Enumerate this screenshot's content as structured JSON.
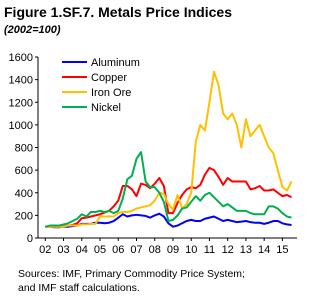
{
  "chart_data": {
    "type": "line",
    "title": "Figure 1.SF.7. Metals Price Indices",
    "subtitle": "(2002=100)",
    "source": [
      "Sources: IMF, Primary Commodity Price System;",
      "and IMF staff calculations."
    ],
    "legend": "top-left",
    "grid": false,
    "xlim": [
      2001.6,
      2015.8
    ],
    "ylim": [
      0,
      1600
    ],
    "yticks": [
      0,
      200,
      400,
      600,
      800,
      1000,
      1200,
      1400,
      1600
    ],
    "xticks": [
      {
        "value": 2002,
        "label": "02"
      },
      {
        "value": 2003,
        "label": "03"
      },
      {
        "value": 2004,
        "label": "04"
      },
      {
        "value": 2005,
        "label": "05"
      },
      {
        "value": 2006,
        "label": "06"
      },
      {
        "value": 2007,
        "label": "07"
      },
      {
        "value": 2008,
        "label": "08"
      },
      {
        "value": 2009,
        "label": "09"
      },
      {
        "value": 2010,
        "label": "10"
      },
      {
        "value": 2011,
        "label": "11"
      },
      {
        "value": 2012,
        "label": "12"
      },
      {
        "value": 2013,
        "label": "13"
      },
      {
        "value": 2014,
        "label": "14"
      },
      {
        "value": 2015,
        "label": "15"
      }
    ],
    "x": [
      2002,
      2002.25,
      2002.5,
      2002.75,
      2003,
      2003.25,
      2003.5,
      2003.75,
      2004,
      2004.25,
      2004.5,
      2004.75,
      2005,
      2005.25,
      2005.5,
      2005.75,
      2006,
      2006.25,
      2006.5,
      2006.75,
      2007,
      2007.25,
      2007.5,
      2007.75,
      2008,
      2008.25,
      2008.5,
      2008.75,
      2009,
      2009.25,
      2009.5,
      2009.75,
      2010,
      2010.25,
      2010.5,
      2010.75,
      2011,
      2011.25,
      2011.5,
      2011.75,
      2012,
      2012.25,
      2012.5,
      2012.75,
      2013,
      2013.25,
      2013.5,
      2013.75,
      2014,
      2014.25,
      2014.5,
      2014.75,
      2015,
      2015.25,
      2015.5
    ],
    "series": [
      {
        "name": "Aluminum",
        "color": "#0000ff",
        "values": [
          100,
          100,
          95,
          95,
          100,
          100,
          105,
          110,
          125,
          125,
          125,
          135,
          135,
          130,
          135,
          150,
          180,
          210,
          190,
          200,
          205,
          200,
          195,
          180,
          200,
          215,
          190,
          130,
          100,
          110,
          130,
          150,
          160,
          150,
          150,
          170,
          180,
          190,
          170,
          150,
          160,
          150,
          140,
          145,
          150,
          140,
          135,
          135,
          125,
          135,
          150,
          150,
          130,
          120,
          115
        ]
      },
      {
        "name": "Copper",
        "color": "#ff0000",
        "values": [
          100,
          105,
          100,
          100,
          105,
          110,
          115,
          130,
          175,
          180,
          190,
          200,
          210,
          225,
          240,
          280,
          330,
          460,
          460,
          430,
          370,
          480,
          470,
          440,
          480,
          530,
          460,
          220,
          220,
          310,
          380,
          430,
          450,
          440,
          470,
          560,
          620,
          600,
          540,
          470,
          530,
          500,
          500,
          500,
          500,
          430,
          440,
          460,
          420,
          420,
          430,
          400,
          370,
          380,
          360
        ]
      },
      {
        "name": "Iron Ore",
        "color": "#ffc000",
        "values": [
          100,
          100,
          100,
          100,
          100,
          110,
          110,
          110,
          120,
          120,
          125,
          125,
          190,
          190,
          190,
          190,
          220,
          230,
          230,
          240,
          260,
          270,
          280,
          290,
          330,
          400,
          390,
          300,
          250,
          380,
          260,
          300,
          400,
          850,
          1000,
          950,
          1200,
          1470,
          1350,
          1100,
          1050,
          1100,
          1000,
          800,
          1050,
          900,
          950,
          1000,
          900,
          800,
          750,
          600,
          450,
          420,
          500
        ]
      },
      {
        "name": "Nickel",
        "color": "#00b050",
        "values": [
          100,
          110,
          110,
          110,
          120,
          130,
          150,
          170,
          210,
          190,
          230,
          230,
          240,
          230,
          240,
          220,
          240,
          350,
          520,
          550,
          700,
          760,
          500,
          450,
          450,
          400,
          320,
          150,
          160,
          200,
          260,
          270,
          320,
          370,
          330,
          380,
          400,
          360,
          320,
          280,
          300,
          270,
          240,
          240,
          240,
          220,
          210,
          210,
          210,
          280,
          280,
          260,
          220,
          190,
          180
        ]
      }
    ]
  }
}
